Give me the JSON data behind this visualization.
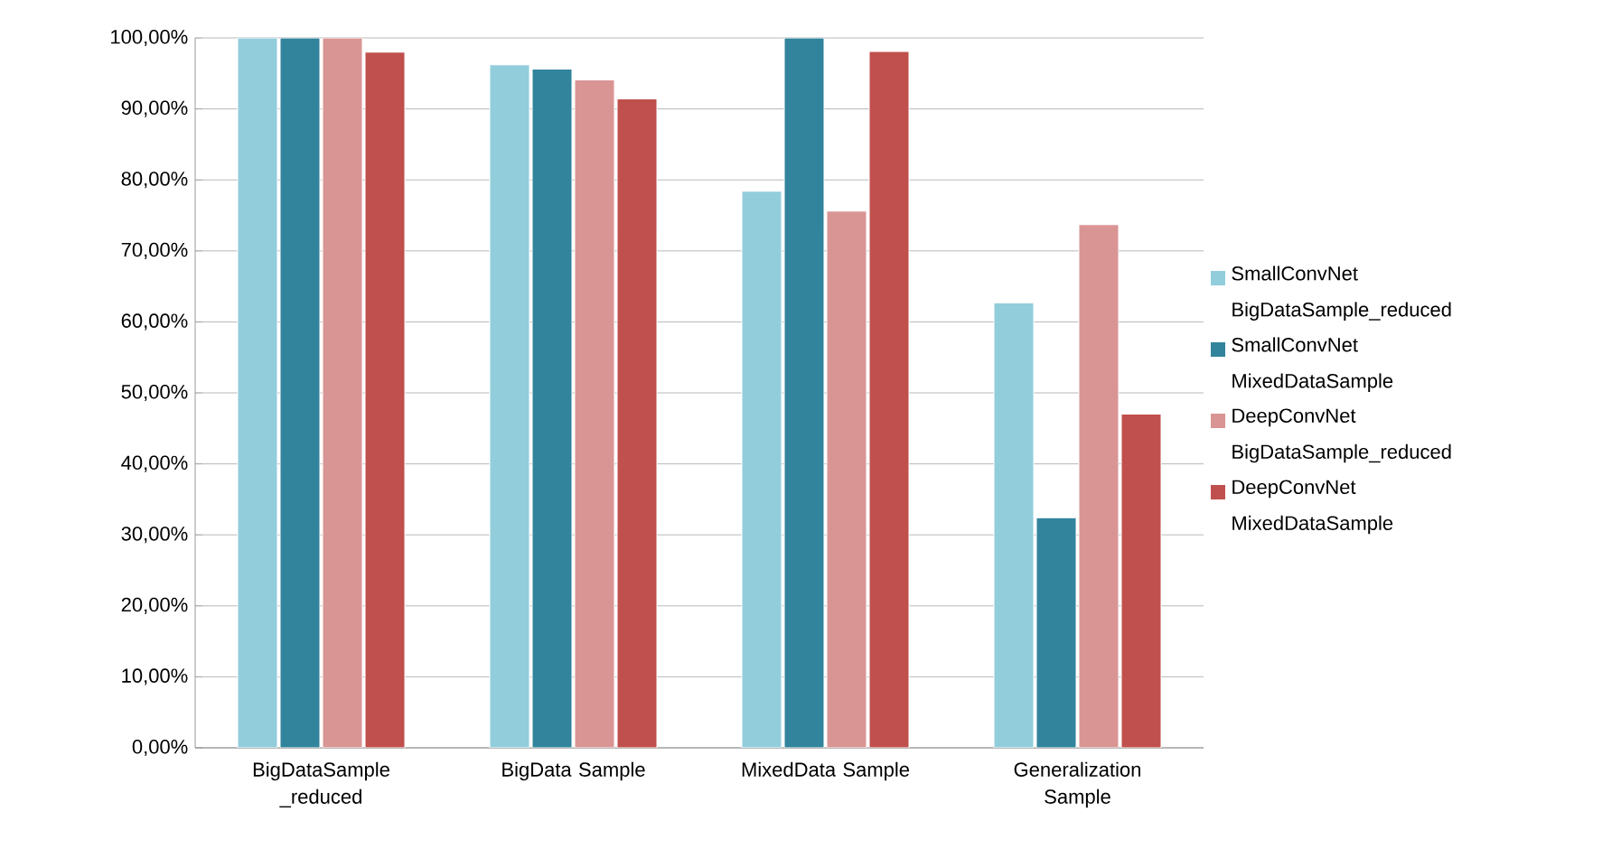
{
  "chart_data": {
    "type": "bar",
    "categories": [
      "BigDataSample _reduced",
      "BigData Sample",
      "MixedData Sample",
      "Generalization Sample"
    ],
    "series": [
      {
        "name": "SmallConvNet BigDataSample_reduced",
        "color": "#92cddc",
        "values": [
          100,
          96.2,
          78.4,
          62.7
        ]
      },
      {
        "name": "SmallConvNet MixedDataSample",
        "color": "#31849b",
        "values": [
          100,
          95.6,
          100,
          32.4
        ]
      },
      {
        "name": "DeepConvNet BigDataSample_reduced",
        "color": "#d99594",
        "values": [
          100,
          94.1,
          75.6,
          73.7
        ]
      },
      {
        "name": "DeepConvNet MixedDataSample",
        "color": "#c0504d",
        "values": [
          98,
          91.4,
          98.1,
          47
        ]
      }
    ],
    "ylim": [
      0,
      100
    ],
    "yticks": [
      {
        "value": 0,
        "label": "0,00%"
      },
      {
        "value": 10,
        "label": "10,00%"
      },
      {
        "value": 20,
        "label": "20,00%"
      },
      {
        "value": 30,
        "label": "30,00%"
      },
      {
        "value": 40,
        "label": "40,00%"
      },
      {
        "value": 50,
        "label": "50,00%"
      },
      {
        "value": 60,
        "label": "60,00%"
      },
      {
        "value": 70,
        "label": "70,00%"
      },
      {
        "value": 80,
        "label": "80,00%"
      },
      {
        "value": 90,
        "label": "90,00%"
      },
      {
        "value": 100,
        "label": "100,00%"
      }
    ],
    "grid": "y",
    "legend": "right"
  }
}
